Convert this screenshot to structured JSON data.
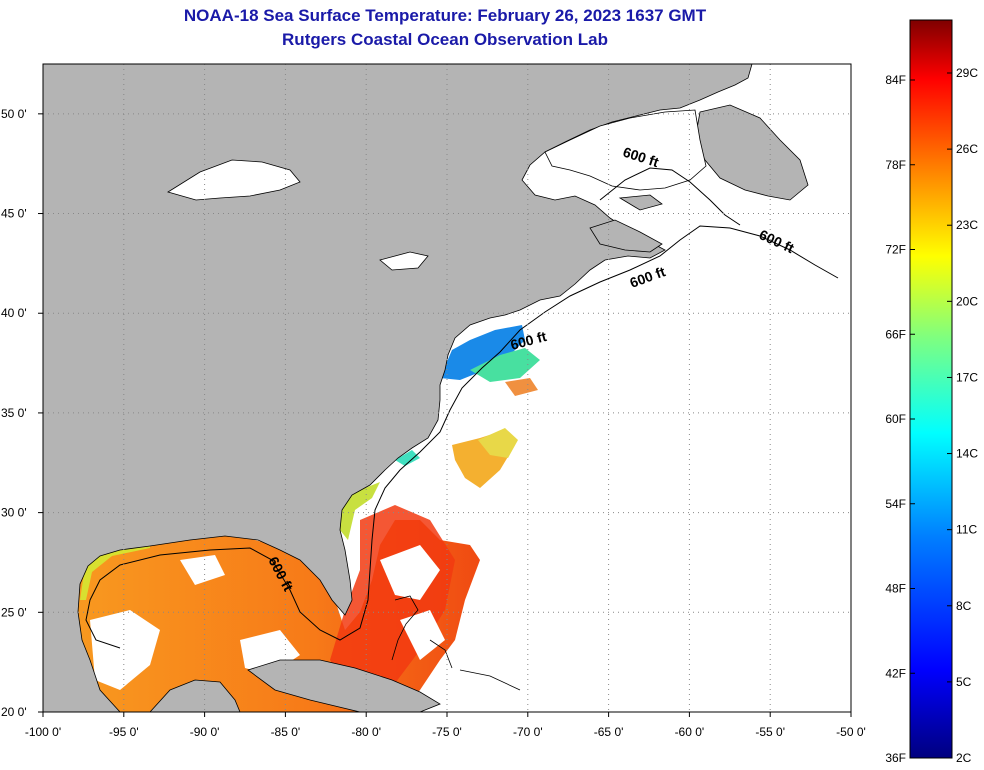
{
  "header": {
    "title_line1": "NOAA-18 Sea Surface Temperature:  February 26, 2023 1637 GMT",
    "title_line2": "Rutgers Coastal Ocean Observation Lab"
  },
  "map": {
    "lon_range": [
      -100,
      -50
    ],
    "lat_range": [
      20,
      52.5
    ],
    "lon_ticks": [
      -100,
      -95,
      -90,
      -85,
      -80,
      -75,
      -70,
      -65,
      -60,
      -55,
      -50
    ],
    "lat_ticks": [
      20,
      25,
      30,
      35,
      40,
      45,
      50
    ],
    "lon_tick_labels": [
      "-100 0'",
      "-95 0'",
      "-90 0'",
      "-85 0'",
      "-80 0'",
      "-75 0'",
      "-70 0'",
      "-65 0'",
      "-60 0'",
      "-55 0'",
      "-50 0'"
    ],
    "lat_tick_labels": [
      "20 0'",
      "25 0'",
      "30 0'",
      "35 0'",
      "40 0'",
      "45 0'",
      "50 0'"
    ],
    "contour_labels": [
      "600 ft",
      "600 ft",
      "600 ft",
      "600 ft",
      "600 ft"
    ],
    "colors": {
      "land": "#b4b4b4",
      "no_data": "#ffffff",
      "grid": "#888888"
    }
  },
  "colorbar": {
    "fahrenheit_labels": [
      "84F",
      "78F",
      "72F",
      "66F",
      "60F",
      "54F",
      "48F",
      "42F",
      "36F"
    ],
    "celsius_labels": [
      "29C",
      "26C",
      "23C",
      "20C",
      "17C",
      "14C",
      "11C",
      "8C",
      "5C",
      "2C"
    ],
    "gradient_stops": [
      "#00007f",
      "#0000ff",
      "#007fff",
      "#00ffff",
      "#7fff7f",
      "#ffff00",
      "#ff7f00",
      "#ff0000",
      "#7f0000"
    ]
  }
}
